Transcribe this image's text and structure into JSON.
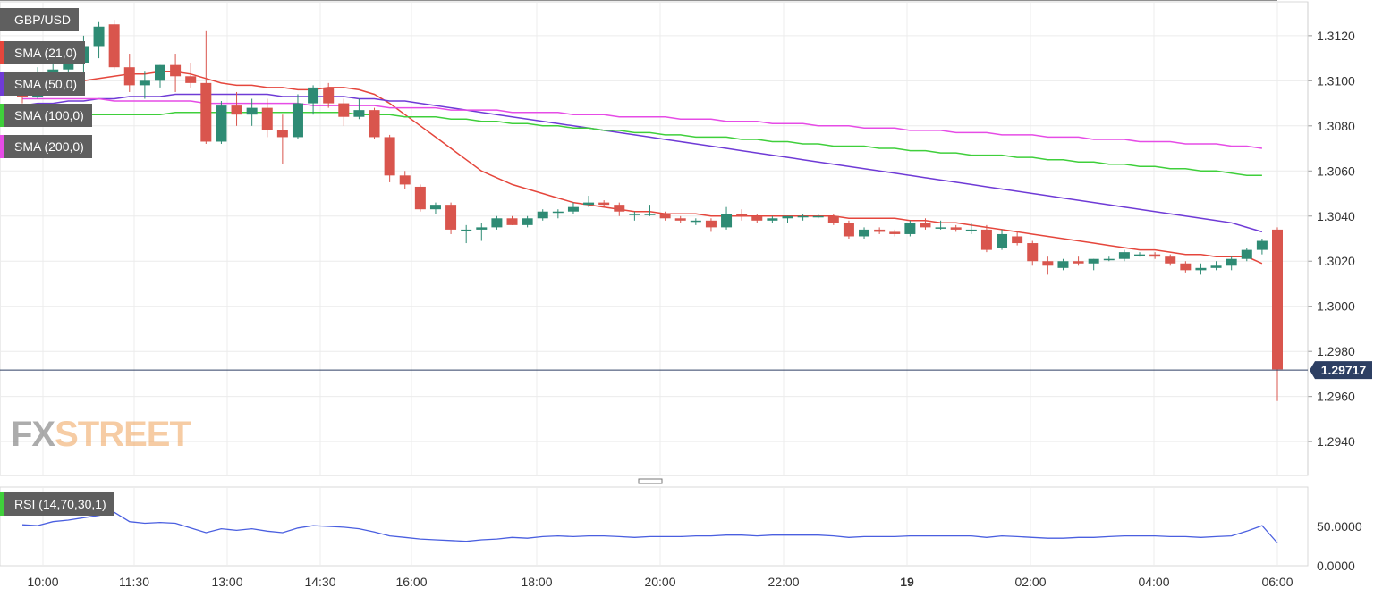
{
  "chart_data": {
    "type": "candlestick",
    "symbol": "GBP/USD",
    "ylim": [
      1.2925,
      1.3135
    ],
    "y_ticks": [
      "1.3120",
      "1.3100",
      "1.3080",
      "1.3060",
      "1.3040",
      "1.3020",
      "1.3000",
      "1.2980",
      "1.2960",
      "1.2940"
    ],
    "x_ticks": [
      "10:00",
      "11:30",
      "13:00",
      "14:30",
      "16:00",
      "18:00",
      "20:00",
      "22:00",
      "19",
      "02:00",
      "04:00",
      "06:00"
    ],
    "last_price": "1.29717",
    "candles": [
      [
        1.3097,
        1.3102,
        1.309,
        1.3093
      ],
      [
        1.3093,
        1.3106,
        1.3092,
        1.3103
      ],
      [
        1.3103,
        1.311,
        1.3098,
        1.3105
      ],
      [
        1.3105,
        1.3112,
        1.31,
        1.3108
      ],
      [
        1.3108,
        1.312,
        1.3102,
        1.3115
      ],
      [
        1.3115,
        1.3126,
        1.311,
        1.3124
      ],
      [
        1.3125,
        1.3127,
        1.3105,
        1.3106
      ],
      [
        1.3106,
        1.3112,
        1.3095,
        1.3098
      ],
      [
        1.3098,
        1.3104,
        1.3092,
        1.31
      ],
      [
        1.31,
        1.3107,
        1.3097,
        1.3107
      ],
      [
        1.3107,
        1.3112,
        1.3095,
        1.3102
      ],
      [
        1.3102,
        1.3108,
        1.3097,
        1.3099
      ],
      [
        1.3099,
        1.3122,
        1.3072,
        1.3073
      ],
      [
        1.3073,
        1.3091,
        1.3072,
        1.3089
      ],
      [
        1.3089,
        1.3095,
        1.308,
        1.3085
      ],
      [
        1.3085,
        1.3092,
        1.308,
        1.3088
      ],
      [
        1.3088,
        1.3092,
        1.3075,
        1.3078
      ],
      [
        1.3078,
        1.3085,
        1.3063,
        1.3075
      ],
      [
        1.3075,
        1.3094,
        1.3074,
        1.309
      ],
      [
        1.309,
        1.3098,
        1.3085,
        1.3097
      ],
      [
        1.3097,
        1.3099,
        1.3088,
        1.309
      ],
      [
        1.309,
        1.3092,
        1.308,
        1.3084
      ],
      [
        1.3084,
        1.3092,
        1.3083,
        1.3087
      ],
      [
        1.3087,
        1.3088,
        1.3074,
        1.3075
      ],
      [
        1.3075,
        1.3076,
        1.3055,
        1.3058
      ],
      [
        1.3058,
        1.306,
        1.3052,
        1.3054
      ],
      [
        1.3053,
        1.3054,
        1.3042,
        1.3043
      ],
      [
        1.3043,
        1.3046,
        1.3041,
        1.3045
      ],
      [
        1.3045,
        1.3046,
        1.3032,
        1.3034
      ],
      [
        1.3034,
        1.3036,
        1.3028,
        1.3034
      ],
      [
        1.3034,
        1.3037,
        1.3029,
        1.3035
      ],
      [
        1.3035,
        1.304,
        1.3034,
        1.3039
      ],
      [
        1.3039,
        1.304,
        1.3036,
        1.3036
      ],
      [
        1.3036,
        1.304,
        1.3035,
        1.3039
      ],
      [
        1.3039,
        1.3043,
        1.3038,
        1.3042
      ],
      [
        1.3042,
        1.3043,
        1.3039,
        1.3042
      ],
      [
        1.3042,
        1.3046,
        1.3041,
        1.3044
      ],
      [
        1.3045,
        1.3049,
        1.3044,
        1.3046
      ],
      [
        1.3046,
        1.3047,
        1.3044,
        1.3045
      ],
      [
        1.3045,
        1.3046,
        1.304,
        1.3042
      ],
      [
        1.3041,
        1.3042,
        1.3038,
        1.3041
      ],
      [
        1.3041,
        1.3045,
        1.304,
        1.3041
      ],
      [
        1.3041,
        1.3042,
        1.3038,
        1.3039
      ],
      [
        1.3039,
        1.304,
        1.3037,
        1.3038
      ],
      [
        1.3038,
        1.3039,
        1.3036,
        1.3038
      ],
      [
        1.3038,
        1.3039,
        1.3033,
        1.3035
      ],
      [
        1.3035,
        1.3044,
        1.3034,
        1.3041
      ],
      [
        1.3041,
        1.3043,
        1.3038,
        1.304
      ],
      [
        1.304,
        1.3041,
        1.3037,
        1.3038
      ],
      [
        1.3038,
        1.304,
        1.3037,
        1.3039
      ],
      [
        1.3039,
        1.304,
        1.3037,
        1.304
      ],
      [
        1.304,
        1.3041,
        1.3038,
        1.304
      ],
      [
        1.304,
        1.3041,
        1.3039,
        1.304
      ],
      [
        1.304,
        1.3041,
        1.3036,
        1.3037
      ],
      [
        1.3037,
        1.3038,
        1.303,
        1.3031
      ],
      [
        1.3031,
        1.3035,
        1.303,
        1.3034
      ],
      [
        1.3034,
        1.3035,
        1.3032,
        1.3033
      ],
      [
        1.3033,
        1.3034,
        1.3031,
        1.3032
      ],
      [
        1.3032,
        1.3038,
        1.3031,
        1.3037
      ],
      [
        1.3037,
        1.3039,
        1.3034,
        1.3035
      ],
      [
        1.3035,
        1.3038,
        1.3034,
        1.3035
      ],
      [
        1.3035,
        1.3036,
        1.3033,
        1.3034
      ],
      [
        1.3034,
        1.3037,
        1.3032,
        1.3034
      ],
      [
        1.3034,
        1.3036,
        1.3024,
        1.3025
      ],
      [
        1.3026,
        1.3034,
        1.3025,
        1.3032
      ],
      [
        1.3031,
        1.3033,
        1.3027,
        1.3028
      ],
      [
        1.3028,
        1.3029,
        1.3018,
        1.302
      ],
      [
        1.302,
        1.3022,
        1.3014,
        1.3018
      ],
      [
        1.3017,
        1.3021,
        1.3016,
        1.302
      ],
      [
        1.302,
        1.3022,
        1.3018,
        1.3019
      ],
      [
        1.3019,
        1.3021,
        1.3016,
        1.3021
      ],
      [
        1.3021,
        1.3022,
        1.302,
        1.3021
      ],
      [
        1.3021,
        1.3025,
        1.302,
        1.3024
      ],
      [
        1.3023,
        1.3024,
        1.3022,
        1.3023
      ],
      [
        1.3023,
        1.3024,
        1.3021,
        1.3022
      ],
      [
        1.3022,
        1.3023,
        1.3018,
        1.3019
      ],
      [
        1.3019,
        1.302,
        1.3015,
        1.3016
      ],
      [
        1.3016,
        1.3019,
        1.3014,
        1.3017
      ],
      [
        1.3017,
        1.302,
        1.3016,
        1.3018
      ],
      [
        1.3018,
        1.3022,
        1.3016,
        1.3021
      ],
      [
        1.3021,
        1.3026,
        1.302,
        1.3025
      ],
      [
        1.3025,
        1.303,
        1.3023,
        1.3029
      ],
      [
        1.3034,
        1.3035,
        1.2958,
        1.2972
      ]
    ],
    "series": [
      {
        "name": "SMA (21,0)",
        "color": "#e5463c",
        "values": [
          1.3093,
          1.3095,
          1.3097,
          1.3099,
          1.31,
          1.3101,
          1.3102,
          1.3103,
          1.3103,
          1.3104,
          1.3104,
          1.3103,
          1.3101,
          1.3099,
          1.3098,
          1.3098,
          1.3097,
          1.3097,
          1.3096,
          1.3096,
          1.3097,
          1.3097,
          1.3096,
          1.3094,
          1.309,
          1.3085,
          1.308,
          1.3075,
          1.307,
          1.3065,
          1.306,
          1.3057,
          1.3054,
          1.3052,
          1.305,
          1.3048,
          1.3046,
          1.3045,
          1.3044,
          1.3043,
          1.3042,
          1.3042,
          1.3041,
          1.3041,
          1.3041,
          1.304,
          1.304,
          1.304,
          1.304,
          1.304,
          1.304,
          1.304,
          1.304,
          1.304,
          1.3039,
          1.3039,
          1.3039,
          1.3039,
          1.3038,
          1.3038,
          1.3037,
          1.3037,
          1.3036,
          1.3035,
          1.3034,
          1.3033,
          1.3032,
          1.3031,
          1.303,
          1.3029,
          1.3028,
          1.3027,
          1.3026,
          1.3025,
          1.3025,
          1.3024,
          1.3023,
          1.3023,
          1.3022,
          1.3022,
          1.3022,
          1.3019
        ]
      },
      {
        "name": "SMA (50,0)",
        "color": "#6f3bd6",
        "values": [
          1.3089,
          1.309,
          1.309,
          1.3091,
          1.3091,
          1.3092,
          1.3092,
          1.3093,
          1.3093,
          1.3093,
          1.3094,
          1.3094,
          1.3094,
          1.3094,
          1.3094,
          1.3094,
          1.3094,
          1.3093,
          1.3093,
          1.3093,
          1.3093,
          1.3093,
          1.3092,
          1.3092,
          1.3091,
          1.3091,
          1.309,
          1.3089,
          1.3088,
          1.3087,
          1.3086,
          1.3085,
          1.3084,
          1.3083,
          1.3082,
          1.3081,
          1.308,
          1.3079,
          1.3078,
          1.3077,
          1.3076,
          1.3075,
          1.3074,
          1.3073,
          1.3072,
          1.3071,
          1.307,
          1.3069,
          1.3068,
          1.3067,
          1.3066,
          1.3065,
          1.3064,
          1.3063,
          1.3062,
          1.3061,
          1.306,
          1.3059,
          1.3058,
          1.3057,
          1.3056,
          1.3055,
          1.3054,
          1.3053,
          1.3052,
          1.3051,
          1.305,
          1.3049,
          1.3048,
          1.3047,
          1.3046,
          1.3045,
          1.3044,
          1.3043,
          1.3042,
          1.3041,
          1.304,
          1.3039,
          1.3038,
          1.3037,
          1.3035,
          1.3033
        ]
      },
      {
        "name": "SMA (100,0)",
        "color": "#3fcf3b",
        "values": [
          1.3085,
          1.3085,
          1.3085,
          1.3085,
          1.3085,
          1.3085,
          1.3085,
          1.3085,
          1.3085,
          1.3085,
          1.3086,
          1.3086,
          1.3086,
          1.3086,
          1.3086,
          1.3086,
          1.3086,
          1.3086,
          1.3086,
          1.3086,
          1.3086,
          1.3086,
          1.3085,
          1.3085,
          1.3085,
          1.3084,
          1.3084,
          1.3084,
          1.3083,
          1.3083,
          1.3082,
          1.3082,
          1.3081,
          1.3081,
          1.308,
          1.308,
          1.3079,
          1.3079,
          1.3078,
          1.3078,
          1.3077,
          1.3077,
          1.3076,
          1.3076,
          1.3075,
          1.3075,
          1.3075,
          1.3074,
          1.3074,
          1.3073,
          1.3073,
          1.3072,
          1.3072,
          1.3071,
          1.3071,
          1.3071,
          1.307,
          1.307,
          1.3069,
          1.3069,
          1.3068,
          1.3068,
          1.3067,
          1.3067,
          1.3067,
          1.3066,
          1.3066,
          1.3065,
          1.3065,
          1.3064,
          1.3064,
          1.3063,
          1.3063,
          1.3062,
          1.3062,
          1.3061,
          1.3061,
          1.306,
          1.306,
          1.3059,
          1.3058,
          1.3058
        ]
      },
      {
        "name": "SMA (200,0)",
        "color": "#e64ce6",
        "values": [
          1.3092,
          1.3092,
          1.3092,
          1.3092,
          1.3092,
          1.3092,
          1.3091,
          1.3091,
          1.3091,
          1.3091,
          1.3091,
          1.3091,
          1.309,
          1.309,
          1.309,
          1.309,
          1.309,
          1.309,
          1.309,
          1.3089,
          1.3089,
          1.3089,
          1.3089,
          1.3089,
          1.3088,
          1.3088,
          1.3088,
          1.3088,
          1.3087,
          1.3087,
          1.3087,
          1.3087,
          1.3086,
          1.3086,
          1.3086,
          1.3086,
          1.3085,
          1.3085,
          1.3085,
          1.3084,
          1.3084,
          1.3084,
          1.3084,
          1.3083,
          1.3083,
          1.3083,
          1.3082,
          1.3082,
          1.3082,
          1.3081,
          1.3081,
          1.3081,
          1.308,
          1.308,
          1.308,
          1.3079,
          1.3079,
          1.3079,
          1.3078,
          1.3078,
          1.3078,
          1.3077,
          1.3077,
          1.3077,
          1.3076,
          1.3076,
          1.3076,
          1.3075,
          1.3075,
          1.3075,
          1.3074,
          1.3074,
          1.3074,
          1.3073,
          1.3073,
          1.3073,
          1.3072,
          1.3072,
          1.3072,
          1.3071,
          1.3071,
          1.307
        ]
      }
    ],
    "rsi": {
      "name": "RSI (14,70,30,1)",
      "color": "#4a5fe0",
      "y_ticks": [
        "50.0000",
        "0.0000"
      ],
      "overbought": 70,
      "oversold": 30,
      "values": [
        52,
        51,
        56,
        58,
        61,
        64,
        68,
        56,
        54,
        55,
        54,
        48,
        42,
        47,
        45,
        47,
        44,
        42,
        48,
        51,
        50,
        49,
        47,
        43,
        38,
        36,
        34,
        33,
        32,
        31,
        33,
        34,
        36,
        35,
        37,
        38,
        37,
        38,
        38,
        37,
        36,
        37,
        37,
        37,
        38,
        38,
        39,
        39,
        38,
        39,
        39,
        39,
        39,
        38,
        36,
        37,
        37,
        37,
        38,
        38,
        38,
        38,
        38,
        36,
        38,
        37,
        36,
        35,
        35,
        36,
        36,
        37,
        38,
        38,
        38,
        37,
        37,
        36,
        37,
        38,
        44,
        51,
        29
      ]
    },
    "colors": {
      "up": "#2e8b74",
      "down": "#d9554d",
      "rsi_over": "#7cf57c",
      "rsi_under": "#f77c7c"
    }
  },
  "brand": {
    "fx": "FX",
    "street": "STREET"
  }
}
